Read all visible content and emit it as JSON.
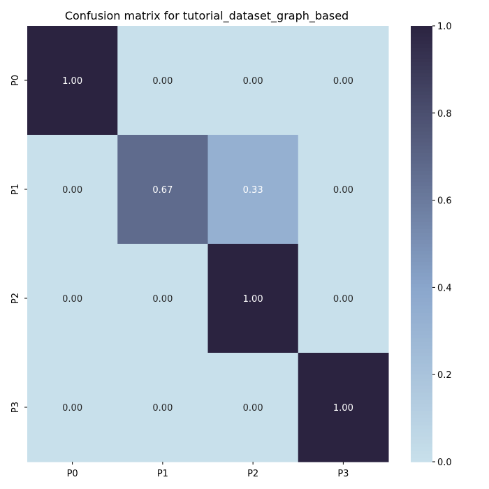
{
  "chart_data": {
    "type": "heatmap",
    "title": "Confusion matrix for tutorial_dataset_graph_based",
    "x_categories": [
      "P0",
      "P1",
      "P2",
      "P3"
    ],
    "y_categories": [
      "P0",
      "P1",
      "P2",
      "P3"
    ],
    "values": [
      [
        1.0,
        0.0,
        0.0,
        0.0
      ],
      [
        0.0,
        0.67,
        0.33,
        0.0
      ],
      [
        0.0,
        0.0,
        1.0,
        0.0
      ],
      [
        0.0,
        0.0,
        0.0,
        1.0
      ]
    ],
    "value_labels": [
      [
        "1.00",
        "0.00",
        "0.00",
        "0.00"
      ],
      [
        "0.00",
        "0.67",
        "0.33",
        "0.00"
      ],
      [
        "0.00",
        "0.00",
        "1.00",
        "0.00"
      ],
      [
        "0.00",
        "0.00",
        "0.00",
        "1.00"
      ]
    ],
    "colorbar": {
      "range": [
        0.0,
        1.0
      ],
      "ticks": [
        0.0,
        0.2,
        0.4,
        0.6,
        0.8,
        1.0
      ],
      "tick_labels": [
        "0.0",
        "0.2",
        "0.4",
        "0.6",
        "0.8",
        "1.0"
      ],
      "color_low": "#c8e0eb",
      "color_mid": "#8aa6cc",
      "color_high": "#2b2340"
    },
    "text_color_light": "#ffffff",
    "text_color_dark": "#262626",
    "xlabel": "",
    "ylabel": ""
  }
}
